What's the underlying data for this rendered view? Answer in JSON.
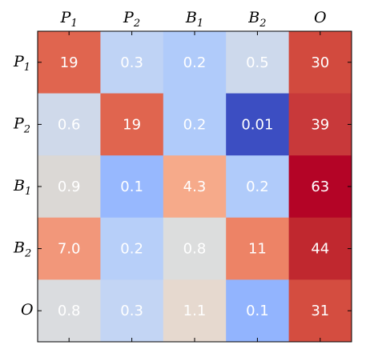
{
  "chart_data": {
    "type": "heatmap",
    "x_ticks": [
      {
        "base": "P",
        "sub": "1"
      },
      {
        "base": "P",
        "sub": "2"
      },
      {
        "base": "B",
        "sub": "1"
      },
      {
        "base": "B",
        "sub": "2"
      },
      {
        "base": "O",
        "sub": ""
      }
    ],
    "y_ticks": [
      {
        "base": "P",
        "sub": "1"
      },
      {
        "base": "P",
        "sub": "2"
      },
      {
        "base": "B",
        "sub": "1"
      },
      {
        "base": "B",
        "sub": "2"
      },
      {
        "base": "O",
        "sub": ""
      }
    ],
    "labels": [
      [
        "19",
        "0.3",
        "0.2",
        "0.5",
        "30"
      ],
      [
        "0.6",
        "19",
        "0.2",
        "0.01",
        "39"
      ],
      [
        "0.9",
        "0.1",
        "4.3",
        "0.2",
        "63"
      ],
      [
        "7.0",
        "0.2",
        "0.8",
        "11",
        "44"
      ],
      [
        "0.8",
        "0.3",
        "1.1",
        "0.1",
        "31"
      ]
    ],
    "colors": [
      [
        "#e0654f",
        "#bfd3f5",
        "#b0cbfa",
        "#cdd9ec",
        "#d24a3e"
      ],
      [
        "#cfd9ea",
        "#e0654f",
        "#b0cbfa",
        "#3c4ec2",
        "#c8393a"
      ],
      [
        "#dbd8d5",
        "#97b8fe",
        "#f6aa8a",
        "#b0cbfa",
        "#b40426"
      ],
      [
        "#f2977a",
        "#b7cff9",
        "#dcdddd",
        "#ed8366",
        "#c0282f"
      ],
      [
        "#dadcdf",
        "#c3d5f4",
        "#e6d9cf",
        "#92b4fe",
        "#d44d40"
      ]
    ],
    "text_color": "#ffffff",
    "colorbar": false
  }
}
